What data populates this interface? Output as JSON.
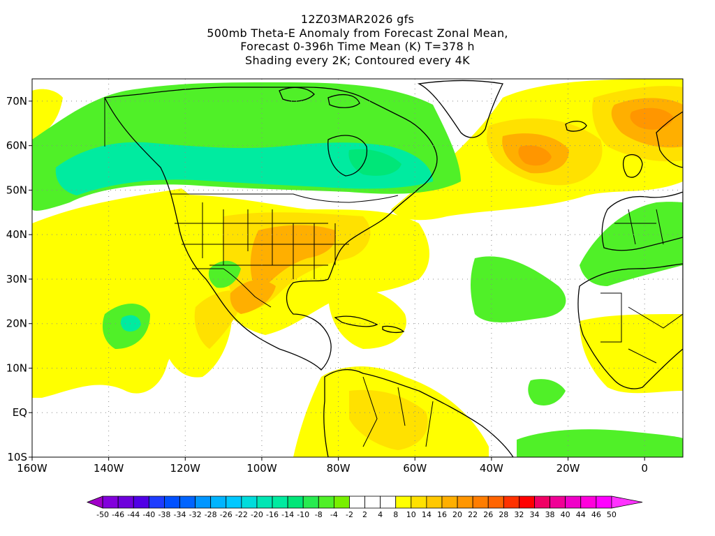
{
  "titles": {
    "line1": "12Z03MAR2026 gfs",
    "line2": "500mb Theta-E Anomaly from Forecast Zonal Mean,",
    "line3": "Forecast 0-396h Time Mean (K) T=378 h",
    "line4": "Shading every 2K; Contoured every 4K"
  },
  "axes": {
    "lon_labels": [
      "160W",
      "140W",
      "120W",
      "100W",
      "80W",
      "60W",
      "40W",
      "20W",
      "0"
    ],
    "lat_labels": [
      "70N",
      "60N",
      "50N",
      "40N",
      "30N",
      "20N",
      "10N",
      "EQ",
      "10S"
    ]
  },
  "colorbar": {
    "labels": [
      "-50",
      "-46",
      "-44",
      "-40",
      "-38",
      "-34",
      "-32",
      "-28",
      "-26",
      "-22",
      "-20",
      "-16",
      "-14",
      "-10",
      "-8",
      "-4",
      "-2",
      "2",
      "4",
      "8",
      "10",
      "14",
      "16",
      "20",
      "22",
      "26",
      "28",
      "32",
      "34",
      "38",
      "40",
      "44",
      "46",
      "50"
    ],
    "colors": [
      "#a000c8",
      "#8200dc",
      "#6e00dc",
      "#5000e6",
      "#1e3cff",
      "#0050ff",
      "#0064ff",
      "#0096ff",
      "#00b4ff",
      "#00c8ff",
      "#00dcdc",
      "#00e6b4",
      "#00eba0",
      "#00e678",
      "#28eb50",
      "#50f028",
      "#78f000",
      "#ffffff",
      "#ffffff",
      "#ffffff",
      "#ffff00",
      "#ffe100",
      "#ffc800",
      "#ffaf00",
      "#ff9600",
      "#ff7d00",
      "#ff6400",
      "#ff3200",
      "#ff0000",
      "#f00064",
      "#f00096",
      "#f000c8",
      "#ff00dc",
      "#ff00ff",
      "#ff32ff"
    ]
  },
  "shading": {
    "yellow": "#ffff00",
    "gold": "#ffe100",
    "orange": "#ffaf00",
    "dark_orange": "#ff9600",
    "green": "#50f028",
    "green_light": "#78f000",
    "teal": "#00eba0",
    "cyan_green": "#00e678"
  }
}
